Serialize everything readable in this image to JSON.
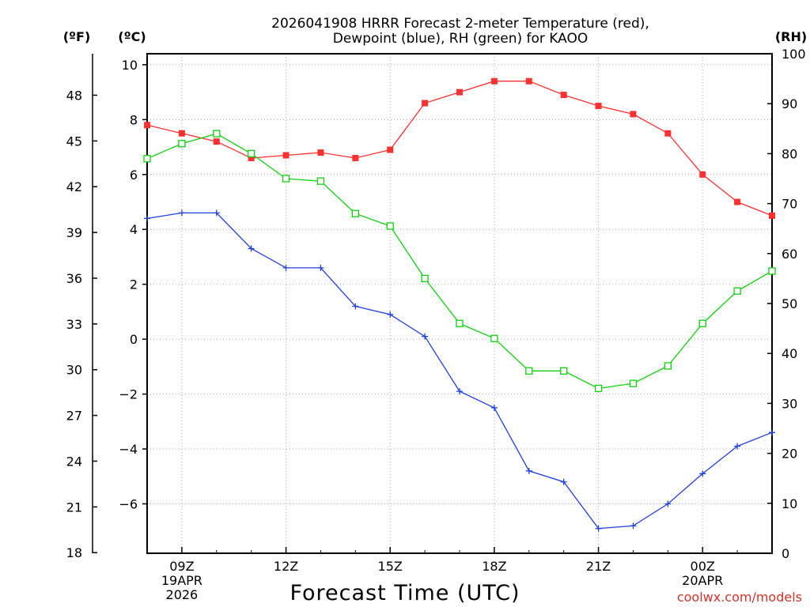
{
  "chart_data": {
    "type": "line",
    "title_line1": "2026041908 HRRR Forecast 2-meter Temperature (red),",
    "title_line2": "Dewpoint (blue), RH (green) for KAOO",
    "xlabel": "Forecast Time (UTC)",
    "credit": "coolwx.com/models",
    "units": {
      "left_f": "(ºF)",
      "left_c": "(ºC)",
      "right_rh": "(RH)"
    },
    "x_hours": [
      8,
      9,
      10,
      11,
      12,
      13,
      14,
      15,
      16,
      17,
      18,
      19,
      20,
      21,
      22,
      23,
      24,
      25,
      26
    ],
    "xlim": [
      8,
      26
    ],
    "x_ticks": [
      {
        "hour": 9,
        "line1": "09Z",
        "line2": "19APR",
        "line3": "2026"
      },
      {
        "hour": 12,
        "line1": "12Z",
        "line2": "",
        "line3": ""
      },
      {
        "hour": 15,
        "line1": "15Z",
        "line2": "",
        "line3": ""
      },
      {
        "hour": 18,
        "line1": "18Z",
        "line2": "",
        "line3": ""
      },
      {
        "hour": 21,
        "line1": "21Z",
        "line2": "",
        "line3": ""
      },
      {
        "hour": 24,
        "line1": "00Z",
        "line2": "20APR",
        "line3": ""
      }
    ],
    "c_axis": {
      "ylim": [
        -7.8,
        10.4
      ],
      "ticks": [
        10,
        8,
        6,
        4,
        2,
        0,
        -2,
        -4,
        -6
      ],
      "tick_labels": [
        "10",
        "8",
        "6",
        "4",
        "2",
        "0",
        "−2",
        "−4",
        "−6"
      ]
    },
    "f_axis": {
      "ticks": [
        48,
        45,
        42,
        39,
        36,
        33,
        30,
        27,
        24,
        21,
        18
      ],
      "tick_labels": [
        "48",
        "45",
        "42",
        "39",
        "36",
        "33",
        "30",
        "27",
        "24",
        "21",
        "18"
      ]
    },
    "rh_axis": {
      "ylim": [
        0,
        100
      ],
      "ticks": [
        100,
        90,
        80,
        70,
        60,
        50,
        40,
        30,
        20,
        10,
        0
      ],
      "tick_labels": [
        "100",
        "90",
        "80",
        "70",
        "60",
        "50",
        "40",
        "30",
        "20",
        "10",
        "0"
      ]
    },
    "series": [
      {
        "name": "2-meter Temperature",
        "color": "#ff3030",
        "marker": "filled-square",
        "axis": "celsius",
        "values": [
          7.8,
          7.5,
          7.2,
          6.6,
          6.7,
          6.8,
          6.6,
          6.9,
          8.6,
          9.0,
          9.4,
          9.4,
          8.9,
          8.5,
          8.2,
          7.5,
          6.0,
          5.0,
          4.5
        ]
      },
      {
        "name": "Dewpoint",
        "color": "#2040e0",
        "marker": "plus",
        "axis": "celsius",
        "values": [
          4.4,
          4.6,
          4.6,
          3.3,
          2.6,
          2.6,
          1.2,
          0.9,
          0.1,
          -1.9,
          -2.5,
          -4.8,
          -5.2,
          -6.9,
          -6.8,
          -6.0,
          -4.9,
          -3.9,
          -3.4
        ]
      },
      {
        "name": "Relative Humidity",
        "color": "#10d010",
        "marker": "open-square",
        "axis": "rh",
        "values": [
          79,
          82,
          84,
          80,
          75,
          74.5,
          68,
          65.5,
          55,
          46,
          43,
          36.5,
          36.5,
          33,
          34,
          37.5,
          46,
          52.5,
          56.5
        ]
      }
    ]
  }
}
